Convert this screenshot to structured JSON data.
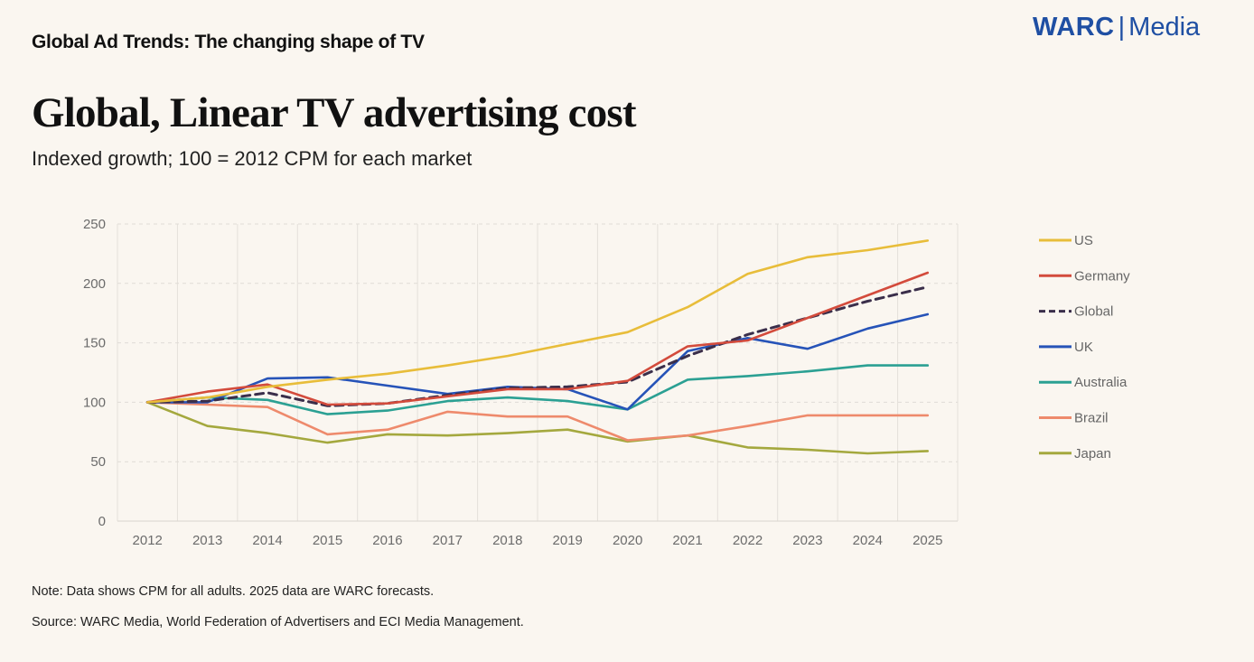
{
  "header": {
    "kicker": "Global Ad Trends: The changing shape of TV",
    "brand_bold": "WARC",
    "brand_sep": "|",
    "brand_light": "Media",
    "brand_color": "#1f4fa3"
  },
  "footer": {
    "note": "Note: Data shows CPM for all adults. 2025 data are WARC forecasts.",
    "source": "Source: WARC Media, World Federation of Advertisers and ECI Media Management."
  },
  "chart_data": {
    "type": "line",
    "title": "Global, Linear TV advertising cost",
    "subtitle": "Indexed growth; 100 = 2012 CPM for each market",
    "xlabel": "",
    "ylabel": "",
    "ylim": [
      0,
      250
    ],
    "yticks": [
      0,
      50,
      100,
      150,
      200,
      250
    ],
    "grid": true,
    "legend_position": "right",
    "x": [
      "2012",
      "2013",
      "2014",
      "2015",
      "2016",
      "2017",
      "2018",
      "2019",
      "2020",
      "2021",
      "2022",
      "2023",
      "2024",
      "2025"
    ],
    "series": [
      {
        "name": "US",
        "color": "#e8bd3a",
        "dashed": false,
        "values": [
          100,
          104,
          113,
          119,
          124,
          131,
          139,
          149,
          159,
          180,
          208,
          222,
          228,
          236
        ]
      },
      {
        "name": "Germany",
        "color": "#d34b3c",
        "dashed": false,
        "values": [
          100,
          109,
          115,
          98,
          99,
          105,
          111,
          111,
          118,
          147,
          152,
          171,
          190,
          209
        ]
      },
      {
        "name": "Global",
        "color": "#3a2e4a",
        "dashed": true,
        "values": [
          100,
          101,
          108,
          97,
          99,
          106,
          112,
          113,
          117,
          139,
          157,
          171,
          185,
          197
        ]
      },
      {
        "name": "UK",
        "color": "#2653b8",
        "dashed": false,
        "values": [
          100,
          100,
          120,
          121,
          114,
          107,
          113,
          111,
          94,
          143,
          154,
          145,
          162,
          174
        ]
      },
      {
        "name": "Australia",
        "color": "#2ba093",
        "dashed": false,
        "values": [
          100,
          104,
          102,
          90,
          93,
          101,
          104,
          101,
          94,
          119,
          122,
          126,
          131,
          131
        ]
      },
      {
        "name": "Brazil",
        "color": "#ee8a6c",
        "dashed": false,
        "values": [
          100,
          98,
          96,
          73,
          77,
          92,
          88,
          88,
          68,
          72,
          80,
          89,
          89,
          89
        ]
      },
      {
        "name": "Japan",
        "color": "#a4a83e",
        "dashed": false,
        "values": [
          100,
          80,
          74,
          66,
          73,
          72,
          74,
          77,
          67,
          72,
          62,
          60,
          57,
          59
        ]
      }
    ]
  }
}
